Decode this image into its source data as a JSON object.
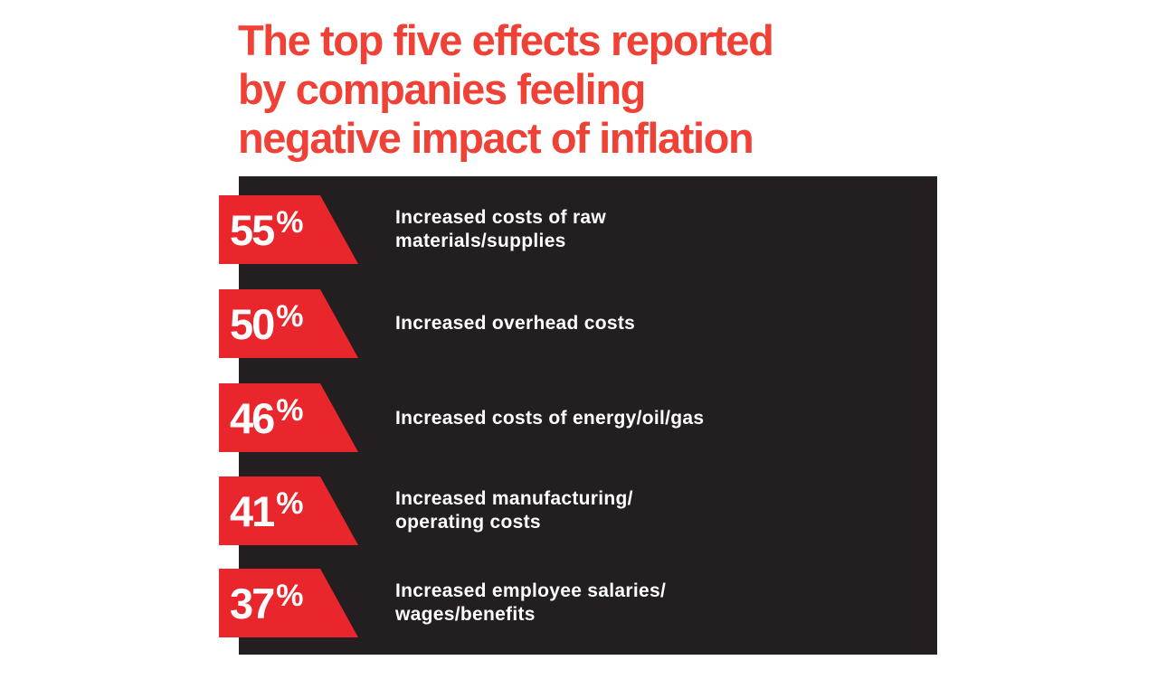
{
  "colors": {
    "accent": "#ef4136",
    "tag": "#e8262c",
    "panel": "#231f20",
    "text": "#ffffff"
  },
  "title": {
    "lines": [
      "The top five effects reported",
      "by companies feeling",
      "negative impact of inflation"
    ]
  },
  "chart_data": {
    "type": "table",
    "title": "The top five effects reported by companies feeling negative impact of inflation",
    "items": [
      {
        "value": "55",
        "unit": "%",
        "label_lines": [
          "Increased costs of raw",
          "materials/supplies"
        ]
      },
      {
        "value": "50",
        "unit": "%",
        "label_lines": [
          "Increased overhead costs"
        ]
      },
      {
        "value": "46",
        "unit": "%",
        "label_lines": [
          "Increased costs of energy/oil/gas"
        ]
      },
      {
        "value": "41",
        "unit": "%",
        "label_lines": [
          "Increased manufacturing/",
          "operating costs"
        ]
      },
      {
        "value": "37",
        "unit": "%",
        "label_lines": [
          "Increased employee salaries/",
          "wages/benefits"
        ]
      }
    ]
  }
}
